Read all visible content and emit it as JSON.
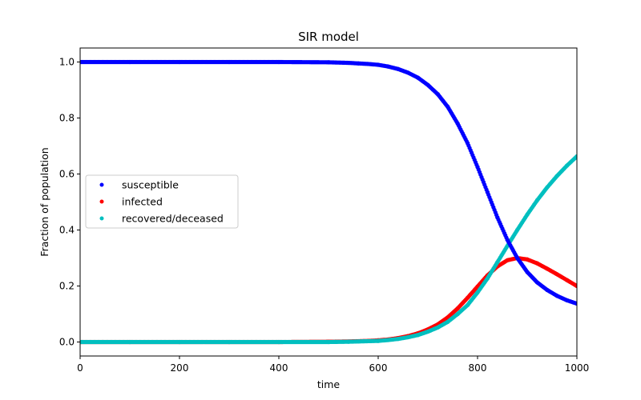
{
  "chart_data": {
    "type": "scatter",
    "title": "SIR model",
    "xlabel": "time",
    "ylabel": "Fraction of population",
    "xlim": [
      0,
      1000
    ],
    "ylim": [
      -0.05,
      1.05
    ],
    "xticks": [
      0,
      200,
      400,
      600,
      800,
      1000
    ],
    "yticks": [
      0.0,
      0.2,
      0.4,
      0.6,
      0.8,
      1.0
    ],
    "xtick_labels": [
      "0",
      "200",
      "400",
      "600",
      "800",
      "1000"
    ],
    "ytick_labels": [
      "0.0",
      "0.2",
      "0.4",
      "0.6",
      "0.8",
      "1.0"
    ],
    "grid": false,
    "legend_position": "center-left",
    "series": [
      {
        "name": "susceptible",
        "color": "#0000ff",
        "x": [
          0,
          100,
          200,
          300,
          400,
          500,
          540,
          560,
          580,
          600,
          620,
          640,
          660,
          680,
          700,
          720,
          740,
          760,
          780,
          800,
          820,
          840,
          860,
          880,
          900,
          920,
          940,
          960,
          980,
          1000
        ],
        "y": [
          1.0,
          1.0,
          1.0,
          1.0,
          1.0,
          0.999,
          0.997,
          0.995,
          0.993,
          0.99,
          0.984,
          0.975,
          0.962,
          0.944,
          0.918,
          0.885,
          0.84,
          0.78,
          0.71,
          0.625,
          0.535,
          0.445,
          0.365,
          0.3,
          0.25,
          0.213,
          0.186,
          0.165,
          0.149,
          0.137
        ]
      },
      {
        "name": "infected",
        "color": "#ff0000",
        "x": [
          0,
          100,
          200,
          300,
          400,
          500,
          540,
          560,
          580,
          600,
          620,
          640,
          660,
          680,
          700,
          720,
          740,
          760,
          780,
          800,
          820,
          840,
          860,
          880,
          900,
          920,
          940,
          960,
          980,
          1000
        ],
        "y": [
          0.0,
          0.0,
          0.0,
          0.0,
          0.0,
          0.001,
          0.002,
          0.003,
          0.004,
          0.006,
          0.009,
          0.014,
          0.021,
          0.031,
          0.045,
          0.063,
          0.088,
          0.12,
          0.158,
          0.198,
          0.238,
          0.27,
          0.292,
          0.3,
          0.295,
          0.281,
          0.262,
          0.242,
          0.221,
          0.2
        ]
      },
      {
        "name": "recovered/deceased",
        "color": "#00bfbf",
        "x": [
          0,
          100,
          200,
          300,
          400,
          500,
          540,
          560,
          580,
          600,
          620,
          640,
          660,
          680,
          700,
          720,
          740,
          760,
          780,
          800,
          820,
          840,
          860,
          880,
          900,
          920,
          940,
          960,
          980,
          1000
        ],
        "y": [
          0.0,
          0.0,
          0.0,
          0.0,
          0.0,
          0.0,
          0.001,
          0.002,
          0.003,
          0.004,
          0.007,
          0.011,
          0.017,
          0.025,
          0.037,
          0.052,
          0.072,
          0.1,
          0.132,
          0.177,
          0.227,
          0.285,
          0.343,
          0.4,
          0.455,
          0.506,
          0.552,
          0.593,
          0.63,
          0.663
        ]
      }
    ]
  }
}
